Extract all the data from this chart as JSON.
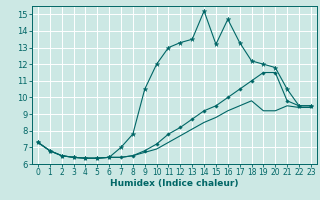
{
  "title": "",
  "xlabel": "Humidex (Indice chaleur)",
  "xlim": [
    -0.5,
    23.5
  ],
  "ylim": [
    6,
    15.5
  ],
  "yticks": [
    6,
    7,
    8,
    9,
    10,
    11,
    12,
    13,
    14,
    15
  ],
  "xticks": [
    0,
    1,
    2,
    3,
    4,
    5,
    6,
    7,
    8,
    9,
    10,
    11,
    12,
    13,
    14,
    15,
    16,
    17,
    18,
    19,
    20,
    21,
    22,
    23
  ],
  "bg_color": "#cce8e4",
  "grid_color": "#ffffff",
  "line_color": "#006666",
  "line1_x": [
    0,
    1,
    2,
    3,
    4,
    5,
    6,
    7,
    8,
    9,
    10,
    11,
    12,
    13,
    14,
    15,
    16,
    17,
    18,
    19,
    20,
    21,
    22,
    23
  ],
  "line1_y": [
    7.3,
    6.8,
    6.5,
    6.4,
    6.35,
    6.35,
    6.4,
    7.0,
    7.8,
    10.5,
    12.0,
    13.0,
    13.3,
    13.5,
    15.2,
    13.2,
    14.7,
    13.3,
    12.2,
    12.0,
    11.8,
    10.5,
    9.5,
    9.5
  ],
  "line2_x": [
    0,
    1,
    2,
    3,
    4,
    5,
    6,
    7,
    8,
    9,
    10,
    11,
    12,
    13,
    14,
    15,
    16,
    17,
    18,
    19,
    20,
    21,
    22,
    23
  ],
  "line2_y": [
    7.3,
    6.8,
    6.5,
    6.4,
    6.35,
    6.35,
    6.4,
    6.4,
    6.5,
    6.8,
    7.2,
    7.8,
    8.2,
    8.7,
    9.2,
    9.5,
    10.0,
    10.5,
    11.0,
    11.5,
    11.5,
    9.8,
    9.5,
    9.5
  ],
  "line3_x": [
    0,
    1,
    2,
    3,
    4,
    5,
    6,
    7,
    8,
    9,
    10,
    11,
    12,
    13,
    14,
    15,
    16,
    17,
    18,
    19,
    20,
    21,
    22,
    23
  ],
  "line3_y": [
    7.3,
    6.8,
    6.5,
    6.4,
    6.35,
    6.35,
    6.4,
    6.4,
    6.5,
    6.7,
    6.9,
    7.3,
    7.7,
    8.1,
    8.5,
    8.8,
    9.2,
    9.5,
    9.8,
    9.2,
    9.2,
    9.5,
    9.4,
    9.4
  ],
  "tick_fontsize": 5.5,
  "xlabel_fontsize": 6.5
}
